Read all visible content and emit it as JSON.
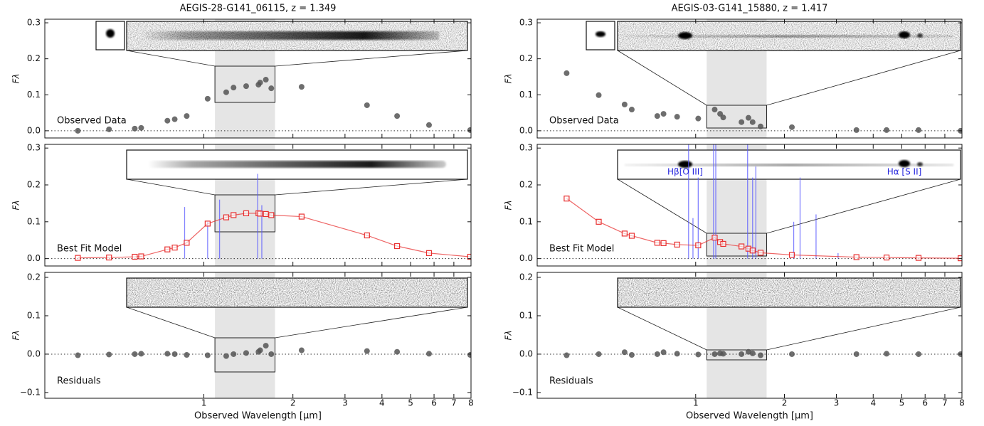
{
  "chart_data": [
    {
      "type": "scatter",
      "title": "AEGIS-28-G141_06115, z = 1.349",
      "annotation": "Observed Data",
      "ylabel": "Fλ",
      "log_x": true,
      "zero_line": true,
      "shaded_range": [
        1.09,
        1.74
      ],
      "shade_color": "#e5e5e5",
      "x": [
        0.375,
        0.478,
        0.584,
        0.614,
        0.753,
        0.797,
        0.875,
        1.03,
        1.19,
        1.26,
        1.39,
        1.53,
        1.55,
        1.62,
        1.69,
        2.14,
        3.56,
        4.5,
        5.77,
        7.95
      ],
      "series": [
        {
          "color": "#555555",
          "marker": "circle",
          "values": [
            0.0,
            0.004,
            0.006,
            0.008,
            0.028,
            0.032,
            0.041,
            0.089,
            0.107,
            0.12,
            0.124,
            0.128,
            0.134,
            0.142,
            0.118,
            0.122,
            0.071,
            0.041,
            0.016,
            0.002
          ]
        }
      ],
      "xlim": [
        0.29,
        8
      ],
      "ylim": [
        -0.02,
        0.31
      ],
      "yticks": [
        {
          "value": 0,
          "label": "0.0"
        },
        0.1,
        0.2,
        0.3
      ]
    },
    {
      "type": "scatter",
      "annotation": "Best Fit Model",
      "ylabel": "Fλ",
      "log_x": true,
      "zero_line": true,
      "shaded_range": [
        1.09,
        1.74
      ],
      "shade_color": "#e5e5e5",
      "x": [
        0.375,
        0.478,
        0.584,
        0.614,
        0.753,
        0.797,
        0.875,
        1.03,
        1.19,
        1.26,
        1.39,
        1.53,
        1.55,
        1.62,
        1.69,
        2.14,
        3.56,
        4.5,
        5.77,
        7.95
      ],
      "series": [
        {
          "color": "#e83030",
          "marker": "square",
          "line": true,
          "values": [
            0.002,
            0.003,
            0.005,
            0.006,
            0.025,
            0.03,
            0.043,
            0.095,
            0.112,
            0.118,
            0.123,
            0.123,
            0.122,
            0.121,
            0.118,
            0.114,
            0.063,
            0.034,
            0.015,
            0.005
          ]
        }
      ],
      "emission_lines": {
        "color": "#5a5aff",
        "x": [
          0.861,
          1.03,
          1.13,
          1.52,
          1.57
        ],
        "values": [
          0.14,
          0.1,
          0.16,
          0.23,
          0.145
        ]
      },
      "xlim": [
        0.29,
        8
      ],
      "ylim": [
        -0.02,
        0.31
      ],
      "yticks": [
        {
          "value": 0,
          "label": "0.0"
        },
        0.1,
        0.2,
        0.3
      ]
    },
    {
      "type": "scatter",
      "annotation": "Residuals",
      "ylabel": "Fλ",
      "xlabel": "Observed Wavelength [μm]",
      "log_x": true,
      "zero_line": true,
      "shaded_range": [
        1.09,
        1.74
      ],
      "shade_color": "#e5e5e5",
      "x": [
        0.375,
        0.478,
        0.584,
        0.614,
        0.753,
        0.797,
        0.875,
        1.03,
        1.19,
        1.26,
        1.39,
        1.53,
        1.55,
        1.62,
        1.69,
        2.14,
        3.56,
        4.5,
        5.77,
        7.95
      ],
      "series": [
        {
          "color": "#555555",
          "marker": "circle",
          "values": [
            -0.003,
            -0.001,
            0.0,
            0.001,
            0.001,
            0.0,
            -0.002,
            -0.003,
            -0.005,
            0.0,
            0.003,
            0.006,
            0.01,
            0.022,
            0.0,
            0.01,
            0.008,
            0.006,
            0.001,
            -0.002
          ]
        }
      ],
      "xlim": [
        0.29,
        8
      ],
      "xticks": [
        1,
        2,
        3,
        4,
        5,
        6,
        7,
        8
      ],
      "ylim": [
        -0.115,
        0.213
      ],
      "yticks": [
        {
          "value": -0.1,
          "label": "−0.1"
        },
        {
          "value": 0,
          "label": "0.0"
        },
        0.1,
        0.2
      ]
    },
    {
      "type": "scatter",
      "title": "AEGIS-03-G141_15880, z = 1.417",
      "annotation": "Observed Data",
      "ylabel": "Fλ",
      "log_x": true,
      "zero_line": true,
      "shaded_range": [
        1.09,
        1.74
      ],
      "shade_color": "#e5e5e5",
      "x": [
        0.365,
        0.469,
        0.574,
        0.607,
        0.741,
        0.778,
        0.865,
        1.02,
        1.16,
        1.21,
        1.24,
        1.43,
        1.51,
        1.56,
        1.66,
        2.12,
        3.51,
        4.44,
        5.7,
        7.92
      ],
      "series": [
        {
          "color": "#555555",
          "marker": "circle",
          "values": [
            0.16,
            0.099,
            0.073,
            0.059,
            0.041,
            0.047,
            0.039,
            0.034,
            0.059,
            0.047,
            0.037,
            0.024,
            0.036,
            0.024,
            0.012,
            0.01,
            0.002,
            0.002,
            0.002,
            0.0
          ]
        }
      ],
      "xlim": [
        0.29,
        8
      ],
      "ylim": [
        -0.02,
        0.31
      ],
      "yticks": [
        {
          "value": 0,
          "label": "0.0"
        },
        0.1,
        0.2,
        0.3
      ]
    },
    {
      "type": "scatter",
      "annotation": "Best Fit Model",
      "ylabel": "Fλ",
      "log_x": true,
      "zero_line": true,
      "shaded_range": [
        1.09,
        1.74
      ],
      "shade_color": "#e5e5e5",
      "inset_labels": [
        "Hβ[O III]",
        "Hα [S II]"
      ],
      "x": [
        0.365,
        0.469,
        0.574,
        0.607,
        0.741,
        0.778,
        0.865,
        1.02,
        1.16,
        1.21,
        1.24,
        1.43,
        1.51,
        1.56,
        1.66,
        2.12,
        3.51,
        4.44,
        5.7,
        7.92
      ],
      "series": [
        {
          "color": "#e83030",
          "marker": "square",
          "line": true,
          "values": [
            0.163,
            0.1,
            0.068,
            0.062,
            0.043,
            0.042,
            0.038,
            0.036,
            0.057,
            0.045,
            0.04,
            0.033,
            0.027,
            0.022,
            0.016,
            0.01,
            0.004,
            0.003,
            0.002,
            0.001
          ]
        }
      ],
      "emission_lines": {
        "color": "#5a5aff",
        "x": [
          0.946,
          0.979,
          1.02,
          1.15,
          1.17,
          1.5,
          1.56,
          1.6,
          2.15,
          2.26,
          2.56,
          3.04
        ],
        "values": [
          0.31,
          0.11,
          0.22,
          0.31,
          0.31,
          0.31,
          0.22,
          0.25,
          0.1,
          0.22,
          0.12,
          0.015
        ]
      },
      "xlim": [
        0.29,
        8
      ],
      "ylim": [
        -0.02,
        0.31
      ],
      "yticks": [
        {
          "value": 0,
          "label": "0.0"
        },
        0.1,
        0.2,
        0.3
      ]
    },
    {
      "type": "scatter",
      "annotation": "Residuals",
      "ylabel": "Fλ",
      "xlabel": "Observed Wavelength [μm]",
      "log_x": true,
      "zero_line": true,
      "shaded_range": [
        1.09,
        1.74
      ],
      "shade_color": "#e5e5e5",
      "x": [
        0.365,
        0.469,
        0.574,
        0.607,
        0.741,
        0.778,
        0.865,
        1.02,
        1.16,
        1.21,
        1.24,
        1.43,
        1.51,
        1.56,
        1.66,
        2.12,
        3.51,
        4.44,
        5.7,
        7.92
      ],
      "series": [
        {
          "color": "#555555",
          "marker": "circle",
          "values": [
            -0.003,
            0.0,
            0.005,
            -0.002,
            0.0,
            0.005,
            0.001,
            -0.001,
            0.0,
            0.002,
            0.001,
            0.0,
            0.006,
            0.002,
            -0.003,
            0.0,
            0.0,
            0.001,
            0.0,
            0.0
          ]
        }
      ],
      "xlim": [
        0.29,
        8
      ],
      "xticks": [
        1,
        2,
        3,
        4,
        5,
        6,
        7,
        8
      ],
      "ylim": [
        -0.115,
        0.213
      ],
      "yticks": [
        {
          "value": -0.1,
          "label": "−0.1"
        },
        {
          "value": 0,
          "label": "0.0"
        },
        0.1,
        0.2
      ]
    }
  ]
}
